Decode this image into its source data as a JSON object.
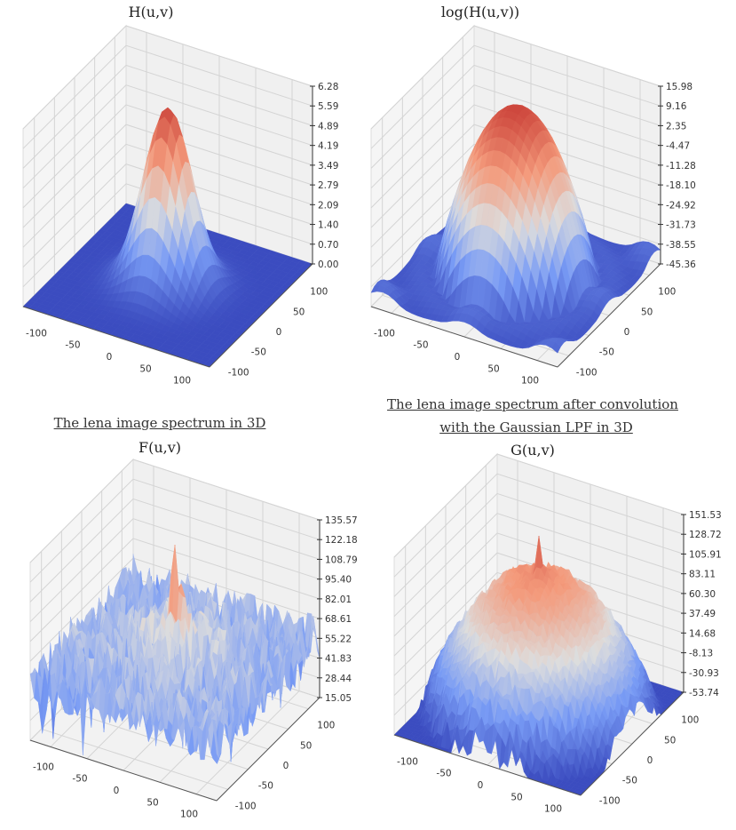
{
  "headings": {
    "bottom_left": "The lena image spectrum in 3D",
    "bottom_right_line1": "The lena image spectrum after convolution",
    "bottom_right_line2": "with the Gaussian LPF in 3D"
  },
  "chart_data": [
    {
      "type": "surface3d",
      "title": "H(u,v)",
      "colormap": "coolwarm",
      "xlim": [
        -128,
        128
      ],
      "ylim": [
        -128,
        128
      ],
      "zlim": [
        0.0,
        6.28
      ],
      "xticks": [
        "-100",
        "-50",
        "0",
        "50",
        "100"
      ],
      "yticks": [
        "-100",
        "-50",
        "0",
        "50",
        "100"
      ],
      "zticks": [
        "0.00",
        "0.70",
        "1.40",
        "2.09",
        "2.79",
        "3.49",
        "4.19",
        "4.89",
        "5.59",
        "6.28"
      ],
      "surface": "gaussian peak at center, flat near 0 elsewhere",
      "grid": true
    },
    {
      "type": "surface3d",
      "title": "log(H(u,v))",
      "colormap": "coolwarm",
      "xlim": [
        -128,
        128
      ],
      "ylim": [
        -128,
        128
      ],
      "zlim": [
        -45.36,
        15.98
      ],
      "xticks": [
        "-100",
        "-50",
        "0",
        "50",
        "100"
      ],
      "yticks": [
        "-100",
        "-50",
        "0",
        "50",
        "100"
      ],
      "zticks": [
        "-45.36",
        "-38.55",
        "-31.73",
        "-24.92",
        "-18.10",
        "-11.28",
        "-4.47",
        "2.35",
        "9.16",
        "15.98"
      ],
      "surface": "paraboloid dome peaking at center",
      "grid": true
    },
    {
      "type": "surface3d",
      "title": "F(u,v)",
      "colormap": "coolwarm",
      "xlim": [
        -128,
        128
      ],
      "ylim": [
        -128,
        128
      ],
      "zlim": [
        15.05,
        135.57
      ],
      "xticks": [
        "-100",
        "-50",
        "0",
        "50",
        "100"
      ],
      "yticks": [
        "-100",
        "-50",
        "0",
        "50",
        "100"
      ],
      "zticks": [
        "15.05",
        "28.44",
        "41.83",
        "55.22",
        "68.61",
        "82.01",
        "95.40",
        "108.79",
        "122.18",
        "135.57"
      ],
      "surface": "noisy spectrum with sharp central peak",
      "grid": true
    },
    {
      "type": "surface3d",
      "title": "G(u,v)",
      "colormap": "coolwarm",
      "xlim": [
        -128,
        128
      ],
      "ylim": [
        -128,
        128
      ],
      "zlim": [
        -53.74,
        151.53
      ],
      "xticks": [
        "-100",
        "-50",
        "0",
        "50",
        "100"
      ],
      "yticks": [
        "-100",
        "-50",
        "0",
        "50",
        "100"
      ],
      "zticks": [
        "-53.74",
        "-30.93",
        "-8.13",
        "14.68",
        "37.49",
        "60.30",
        "83.11",
        "105.91",
        "128.72",
        "151.53"
      ],
      "surface": "noisy dome with central spike",
      "grid": true
    }
  ]
}
